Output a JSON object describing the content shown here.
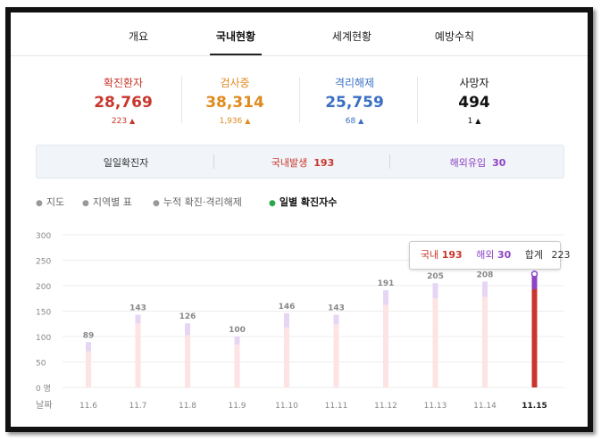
{
  "tabs": [
    {
      "label": "개요",
      "active": false
    },
    {
      "label": "국내현황",
      "active": true
    },
    {
      "label": "세계현황",
      "active": false
    },
    {
      "label": "예방수칙",
      "active": false
    }
  ],
  "stats": [
    {
      "label": "확진환자",
      "value": "28,769",
      "delta": "223",
      "color": "#c8372d"
    },
    {
      "label": "검사중",
      "value": "38,314",
      "delta": "1,936",
      "color": "#e08a1e"
    },
    {
      "label": "격리해제",
      "value": "25,759",
      "delta": "68",
      "color": "#3a6fc4"
    },
    {
      "label": "사망자",
      "value": "494",
      "delta": "1",
      "color": "#111111"
    }
  ],
  "daily": {
    "label": "일일확진자",
    "domestic_label": "국내발생",
    "domestic_value": "193",
    "overseas_label": "해외유입",
    "overseas_value": "30"
  },
  "legend": [
    {
      "label": "지도",
      "active": false
    },
    {
      "label": "지역별 표",
      "active": false
    },
    {
      "label": "누적 확진·격리해제",
      "active": false
    },
    {
      "label": "일별 확진자수",
      "active": true
    }
  ],
  "tooltip": {
    "domestic_label": "국내",
    "domestic_value": "193",
    "overseas_label": "해외",
    "overseas_value": "30",
    "total_label": "합계",
    "total_value": "223"
  },
  "colors": {
    "domestic": "#c8372d",
    "overseas": "#8e44c4",
    "bar_light": "#fde3e3",
    "bar_light_top": "#e6d6f4",
    "grid": "#ececec"
  },
  "chart_data": {
    "type": "bar",
    "categories": [
      "11.6",
      "11.7",
      "11.8",
      "11.9",
      "11.10",
      "11.11",
      "11.12",
      "11.13",
      "11.14",
      "11.15"
    ],
    "totals": [
      89,
      143,
      126,
      100,
      146,
      143,
      191,
      205,
      208,
      223
    ],
    "series": [
      {
        "name": "국내",
        "values": [
          71,
          126,
          103,
          84,
          118,
          124,
          162,
          175,
          178,
          193
        ]
      },
      {
        "name": "해외",
        "values": [
          18,
          17,
          23,
          16,
          28,
          19,
          29,
          30,
          30,
          30
        ]
      }
    ],
    "highlight_index": 9,
    "y_ticks": [
      "0 명",
      "50",
      "100",
      "150",
      "200",
      "250",
      "300"
    ],
    "xlabel": "날짜",
    "ylim": [
      0,
      300
    ],
    "grid": true
  }
}
